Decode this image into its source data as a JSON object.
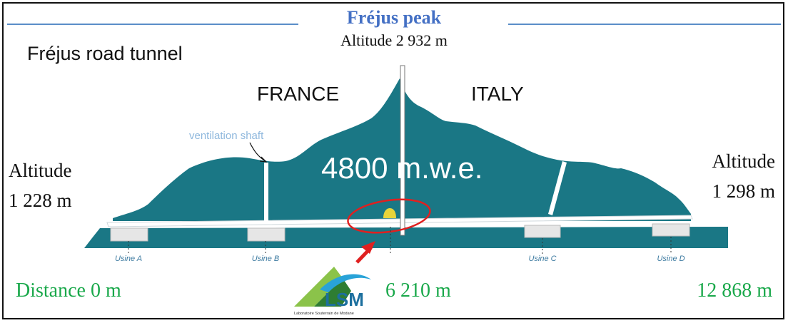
{
  "peak": {
    "title": "Fréjus peak",
    "altitude": "Altitude 2 932 m"
  },
  "tunnel_name": "Fréjus road tunnel",
  "countries": {
    "left": "FRANCE",
    "right": "ITALY"
  },
  "ventilation_label": "ventilation shaft",
  "depth_label": "4800 m.w.e.",
  "altitude_left": {
    "line1": "Altitude",
    "line2": "1 228 m"
  },
  "altitude_right": {
    "line1": "Altitude",
    "line2": "1 298 m"
  },
  "usines": [
    "Usine A",
    "Usine B",
    "Usine C",
    "Usine D"
  ],
  "distances": {
    "start": "Distance 0 m",
    "mid": "6 210 m",
    "end": "12 868 m"
  },
  "logo": {
    "text": "LSM",
    "subtitle": "Laboratoire Souterrain de Modane"
  },
  "colors": {
    "mountain": "#1a7785",
    "title_blue": "#4470c4",
    "distance_green": "#19a84a",
    "highlight_red": "#e02020",
    "lab_yellow": "#e8d43a"
  }
}
